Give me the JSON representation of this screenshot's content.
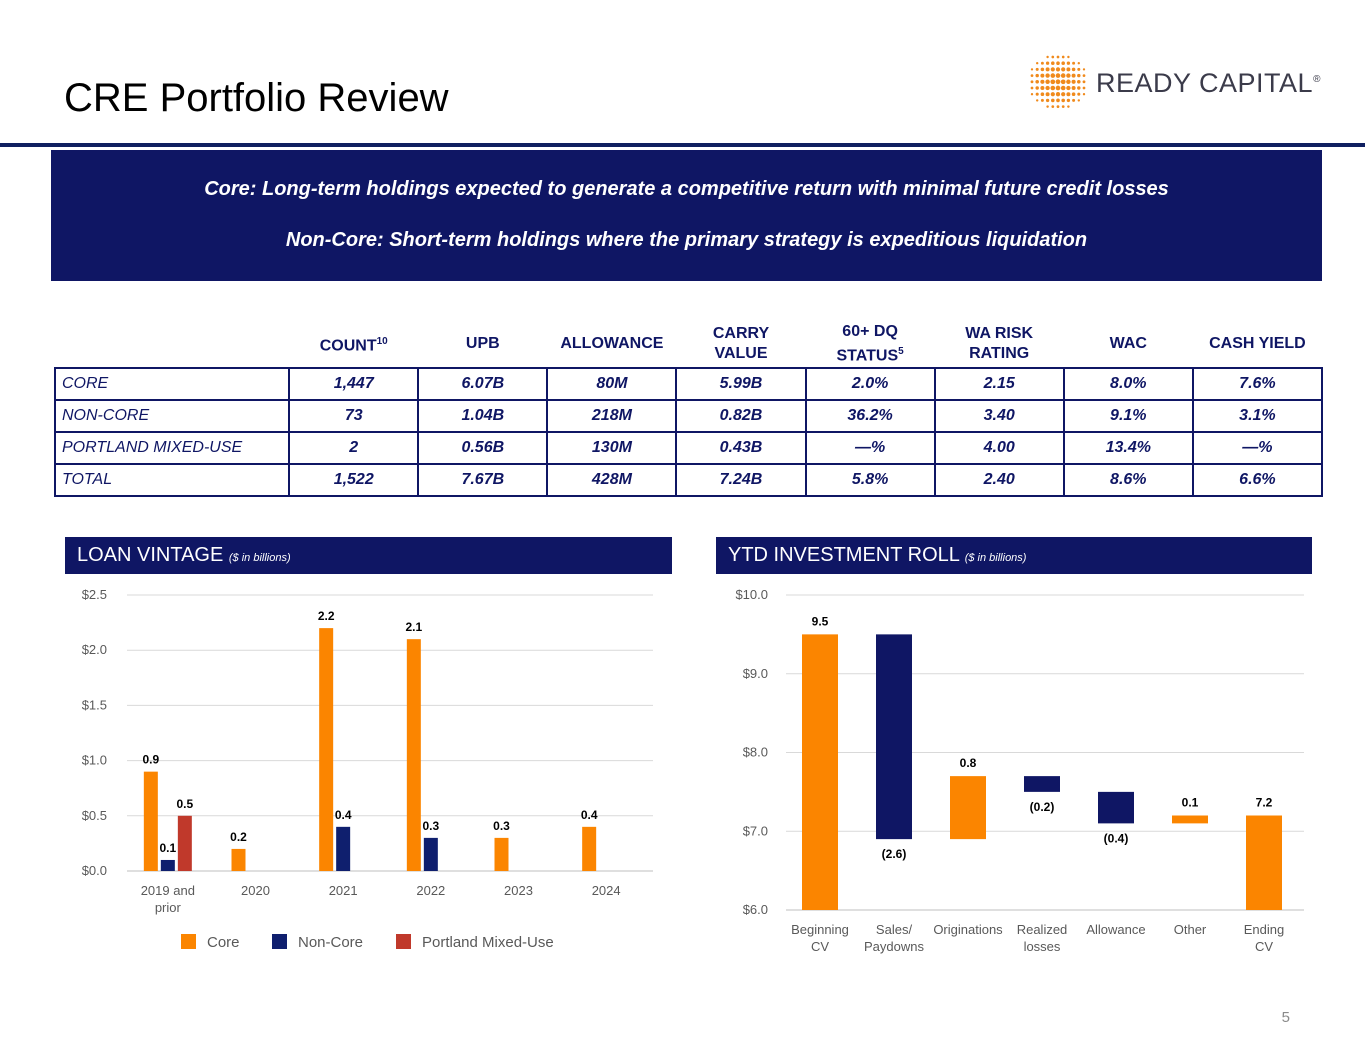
{
  "page": {
    "title": "CRE Portfolio Review",
    "page_number": "5",
    "logo_text": "READY CAPITAL"
  },
  "banner": {
    "line1": "Core: Long-term holdings expected to generate a competitive return with minimal future credit losses",
    "line2": "Non-Core: Short-term holdings where the primary strategy is expeditious liquidation"
  },
  "table": {
    "headers": [
      {
        "label": "COUNT",
        "sup": "10"
      },
      {
        "label": "UPB",
        "sup": ""
      },
      {
        "label": "ALLOWANCE",
        "sup": ""
      },
      {
        "label": "CARRY VALUE",
        "sup": ""
      },
      {
        "label": "60+ DQ STATUS",
        "sup": "5"
      },
      {
        "label": "WA RISK RATING",
        "sup": ""
      },
      {
        "label": "WAC",
        "sup": ""
      },
      {
        "label": "CASH YIELD",
        "sup": ""
      }
    ],
    "rows": [
      {
        "label": "CORE",
        "values": [
          "1,447",
          "6.07B",
          "80M",
          "5.99B",
          "2.0%",
          "2.15",
          "8.0%",
          "7.6%"
        ]
      },
      {
        "label": "NON-CORE",
        "values": [
          "73",
          "1.04B",
          "218M",
          "0.82B",
          "36.2%",
          "3.40",
          "9.1%",
          "3.1%"
        ]
      },
      {
        "label": "PORTLAND MIXED-USE",
        "values": [
          "2",
          "0.56B",
          "130M",
          "0.43B",
          "—%",
          "4.00",
          "13.4%",
          "—%"
        ]
      },
      {
        "label": "TOTAL",
        "values": [
          "1,522",
          "7.67B",
          "428M",
          "7.24B",
          "5.8%",
          "2.40",
          "8.6%",
          "6.6%"
        ]
      }
    ]
  },
  "colors": {
    "navy": "#0f1664",
    "orange": "#fb8500",
    "red": "#c0392b",
    "grid": "#d9d9d9",
    "axis_text": "#595959"
  },
  "chart_data": [
    {
      "type": "bar",
      "title": "LOAN VINTAGE",
      "subtitle": "($ in billions)",
      "categories": [
        "2019 and prior",
        "2020",
        "2021",
        "2022",
        "2023",
        "2024"
      ],
      "series": [
        {
          "name": "Core",
          "color": "#fb8500",
          "values": [
            0.9,
            0.2,
            2.2,
            2.1,
            0.3,
            0.4
          ],
          "labels": [
            "0.9",
            "0.2",
            "2.2",
            "2.1",
            "0.3",
            "0.4"
          ]
        },
        {
          "name": "Non-Core",
          "color": "#0f1f6e",
          "values": [
            0.1,
            null,
            0.4,
            0.3,
            null,
            null
          ],
          "labels": [
            "0.1",
            "",
            "0.4",
            "0.3",
            "",
            ""
          ]
        },
        {
          "name": "Portland Mixed-Use",
          "color": "#c0392b",
          "values": [
            0.5,
            null,
            null,
            null,
            null,
            null
          ],
          "labels": [
            "0.5",
            "",
            "",
            "",
            "",
            ""
          ]
        }
      ],
      "y_ticks": [
        "$0.0",
        "$0.5",
        "$1.0",
        "$1.5",
        "$2.0",
        "$2.5"
      ],
      "ylim": [
        0,
        2.5
      ],
      "legend": "bottom"
    },
    {
      "type": "waterfall",
      "title": "YTD INVESTMENT ROLL",
      "subtitle": "($ in billions)",
      "categories": [
        "Beginning CV",
        "Sales/ Paydowns",
        "Originations",
        "Realized losses",
        "Allowance",
        "Other",
        "Ending CV"
      ],
      "bars": [
        {
          "label": "9.5",
          "start": 6.0,
          "end": 9.5,
          "color": "#fb8500"
        },
        {
          "label": "(2.6)",
          "start": 9.5,
          "end": 6.9,
          "color": "#0f1664"
        },
        {
          "label": "0.8",
          "start": 6.9,
          "end": 7.7,
          "color": "#fb8500"
        },
        {
          "label": "(0.2)",
          "start": 7.7,
          "end": 7.5,
          "color": "#0f1664"
        },
        {
          "label": "(0.4)",
          "start": 7.5,
          "end": 7.1,
          "color": "#0f1664"
        },
        {
          "label": "0.1",
          "start": 7.1,
          "end": 7.2,
          "color": "#fb8500"
        },
        {
          "label": "7.2",
          "start": 6.0,
          "end": 7.2,
          "color": "#fb8500"
        }
      ],
      "y_ticks": [
        "$6.0",
        "$7.0",
        "$8.0",
        "$9.0",
        "$10.0"
      ],
      "ylim": [
        6.0,
        10.0
      ]
    }
  ]
}
